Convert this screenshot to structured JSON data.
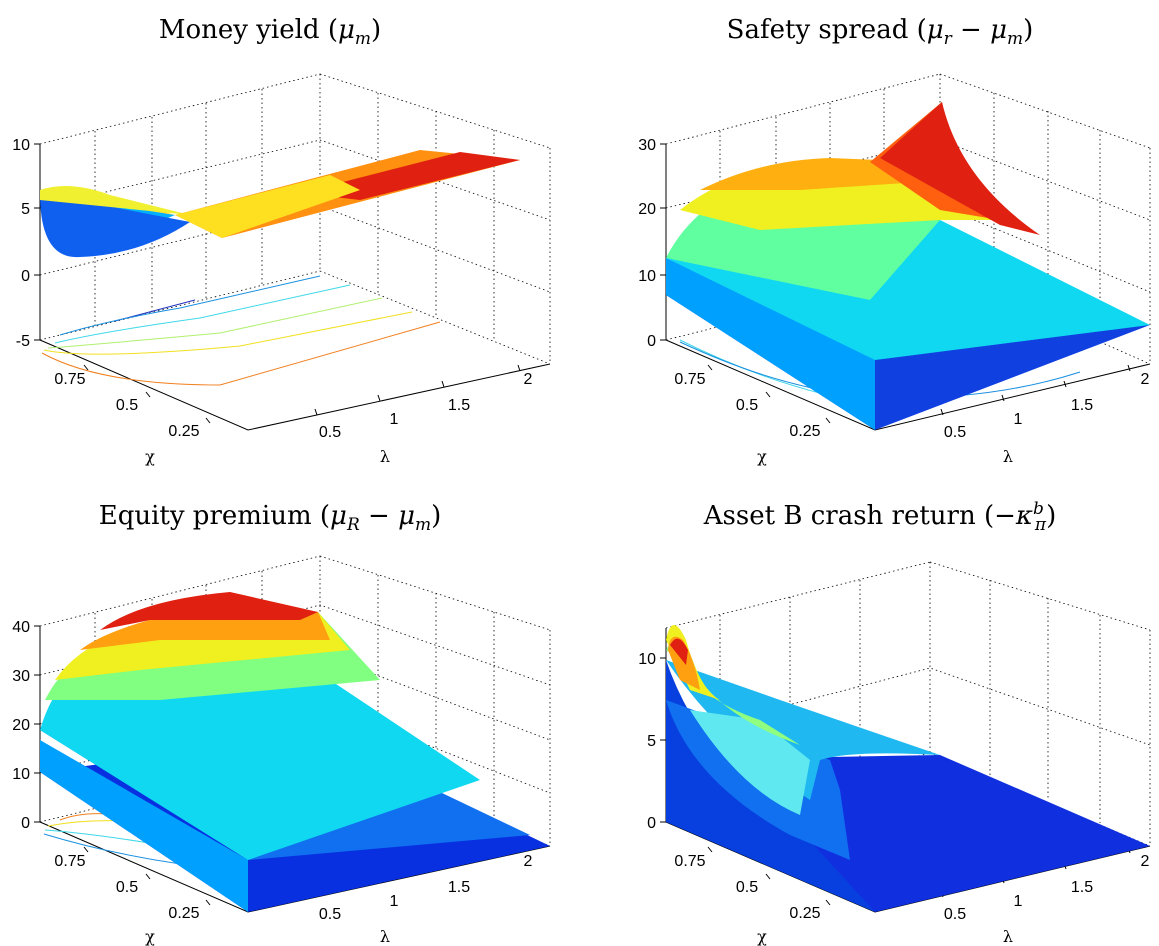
{
  "figure": {
    "panels": [
      {
        "title": "Money yield (μm)",
        "title_parts": {
          "pre": "Money yield (",
          "sym": "μ",
          "sub": "m",
          "post": ")"
        },
        "xlabel": "χ",
        "ylabel": "λ",
        "x_ticks": [
          "0.75",
          "0.5",
          "0.25"
        ],
        "y_ticks": [
          "0.5",
          "1",
          "1.5",
          "2"
        ],
        "z_ticks": [
          "10",
          "5",
          "0",
          "-5"
        ]
      },
      {
        "title": "Safety spread (μr − μm)",
        "title_parts": {
          "pre": "Safety spread (",
          "sym": "μ",
          "sub": "r",
          "mid": " − ",
          "sym2": "μ",
          "sub2": "m",
          "post": ")"
        },
        "xlabel": "χ",
        "ylabel": "λ",
        "x_ticks": [
          "0.75",
          "0.5",
          "0.25"
        ],
        "y_ticks": [
          "0.5",
          "1",
          "1.5",
          "2"
        ],
        "z_ticks": [
          "30",
          "20",
          "10",
          "0"
        ]
      },
      {
        "title": "Equity premium (μR − μm)",
        "title_parts": {
          "pre": "Equity premium (",
          "sym": "μ",
          "sub": "R",
          "mid": " − ",
          "sym2": "μ",
          "sub2": "m",
          "post": ")"
        },
        "xlabel": "χ",
        "ylabel": "λ",
        "x_ticks": [
          "0.75",
          "0.5",
          "0.25"
        ],
        "y_ticks": [
          "0.5",
          "1",
          "1.5",
          "2"
        ],
        "z_ticks": [
          "40",
          "30",
          "20",
          "10",
          "0"
        ]
      },
      {
        "title": "Asset B crash return (−κπb)",
        "title_parts": {
          "pre": "Asset B crash return (−",
          "sym": "κ",
          "sub": "π",
          "sup": "b",
          "post": ")"
        },
        "xlabel": "χ",
        "ylabel": "λ",
        "x_ticks": [
          "0.75",
          "0.5",
          "0.25"
        ],
        "y_ticks": [
          "0.5",
          "1",
          "1.5",
          "2"
        ],
        "z_ticks": [
          "10",
          "5",
          "0"
        ]
      }
    ]
  },
  "chart_data": [
    {
      "type": "surface",
      "title": "Money yield (μm)",
      "xlabel": "χ",
      "ylabel": "λ",
      "x_range": [
        0.05,
        0.95
      ],
      "y_range": [
        0.2,
        2.1
      ],
      "zlim": [
        -5,
        10
      ],
      "colormap": "jet",
      "contours_on_floor": true,
      "grid": true,
      "grid_x": [
        0.05,
        0.5,
        0.95
      ],
      "grid_y": [
        0.2,
        1.15,
        2.1
      ],
      "z": [
        [
          6.0,
          7.0,
          8.0
        ],
        [
          2.2,
          3.0,
          8.0
        ],
        [
          6.0,
          7.0,
          8.0
        ]
      ]
    },
    {
      "type": "surface",
      "title": "Safety spread (μr − μm)",
      "xlabel": "χ",
      "ylabel": "λ",
      "x_range": [
        0.05,
        0.95
      ],
      "y_range": [
        0.2,
        2.1
      ],
      "zlim": [
        0,
        30
      ],
      "colormap": "jet",
      "contours_on_floor": true,
      "grid": true,
      "grid_x": [
        0.05,
        0.5,
        0.95
      ],
      "grid_y": [
        0.2,
        1.15,
        2.1
      ],
      "z": [
        [
          5,
          22,
          33
        ],
        [
          2,
          17,
          20
        ],
        [
          0,
          1,
          2
        ]
      ]
    },
    {
      "type": "surface",
      "title": "Equity premium (μR − μm)",
      "xlabel": "χ",
      "ylabel": "λ",
      "x_range": [
        0.05,
        0.95
      ],
      "y_range": [
        0.2,
        2.1
      ],
      "zlim": [
        0,
        40
      ],
      "colormap": "jet",
      "contours_on_floor": true,
      "grid": true,
      "grid_x": [
        0.05,
        0.5,
        0.95
      ],
      "grid_y": [
        0.2,
        1.15,
        2.1
      ],
      "z": [
        [
          11,
          36,
          40
        ],
        [
          6,
          22,
          25
        ],
        [
          0,
          1,
          2
        ]
      ]
    },
    {
      "type": "surface",
      "title": "Asset B crash return (−κπb)",
      "xlabel": "χ",
      "ylabel": "λ",
      "x_range": [
        0.05,
        0.95
      ],
      "y_range": [
        0.2,
        2.1
      ],
      "zlim": [
        0,
        12
      ],
      "colormap": "jet",
      "contours_on_floor": true,
      "grid": true,
      "grid_x": [
        0.05,
        0.5,
        0.95
      ],
      "grid_y": [
        0.2,
        1.15,
        2.1
      ],
      "z": [
        [
          11,
          3,
          0
        ],
        [
          3,
          1,
          0
        ],
        [
          0,
          0,
          0
        ]
      ]
    }
  ]
}
